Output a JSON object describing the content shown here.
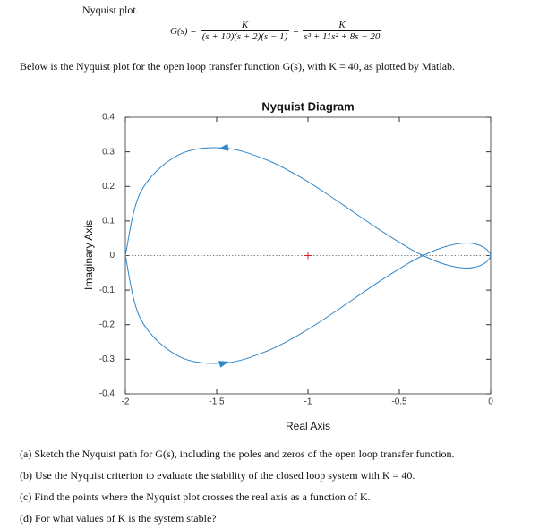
{
  "header": {
    "title": "Nyquist plot."
  },
  "formula": {
    "lhs": "G(s) =",
    "num1": "K",
    "den1": "(s + 10)(s + 2)(s − 1)",
    "eq": "=",
    "num2": "K",
    "den2": "s³ + 11s² + 8s − 20"
  },
  "intro": "Below is the Nyquist plot for the open loop transfer function G(s), with K = 40, as plotted by Matlab.",
  "chart_data": {
    "type": "line",
    "title": "Nyquist Diagram",
    "x_label": "Real Axis",
    "y_label": "Imaginary Axis",
    "xlim": [
      -2,
      0
    ],
    "ylim": [
      -0.4,
      0.4
    ],
    "xticks": [
      -2,
      -1.5,
      -1,
      -0.5,
      0
    ],
    "yticks": [
      -0.4,
      -0.3,
      -0.2,
      -0.1,
      0,
      0.1,
      0.2,
      0.3,
      0.4
    ],
    "series": [
      {
        "color": "#2f86c8",
        "x": [
          -2,
          -1.916,
          -1.709,
          -1.461,
          -1.228,
          -1.0275,
          -0.862,
          -0.615,
          -0.4496,
          -0.3704,
          -0.2561,
          -0.1567,
          -0.0827,
          -0.0289,
          -0.0059,
          0
        ],
        "y": [
          0,
          -0.1838,
          -0.291,
          -0.311,
          -0.277,
          -0.2223,
          -0.166,
          -0.0769,
          -0.0222,
          0,
          0.0246,
          0.0356,
          0.0334,
          0.0208,
          0.0077,
          0
        ]
      },
      {
        "color": "#2f86c8",
        "x": [
          -2,
          -1.916,
          -1.709,
          -1.461,
          -1.228,
          -1.0275,
          -0.862,
          -0.615,
          -0.4496,
          -0.3704,
          -0.2561,
          -0.1567,
          -0.0827,
          -0.0289,
          -0.0059,
          0
        ],
        "y": [
          0,
          0.1838,
          0.291,
          0.311,
          0.277,
          0.2223,
          0.166,
          0.0769,
          0.0222,
          0,
          -0.0246,
          -0.0356,
          -0.0334,
          -0.0208,
          -0.0077,
          0
        ]
      }
    ],
    "critical_point": {
      "x": -1,
      "y": 0,
      "color": "#e02020"
    }
  },
  "questions": [
    "(a) Sketch the Nyquist path for G(s), including the poles and zeros of the open loop transfer function.",
    "(b) Use the Nyquist criterion to evaluate the stability of the closed loop system with K = 40.",
    "(c) Find the points where the Nyquist plot crosses the real axis as a function of K.",
    "(d) For what values of K is the system stable?"
  ]
}
